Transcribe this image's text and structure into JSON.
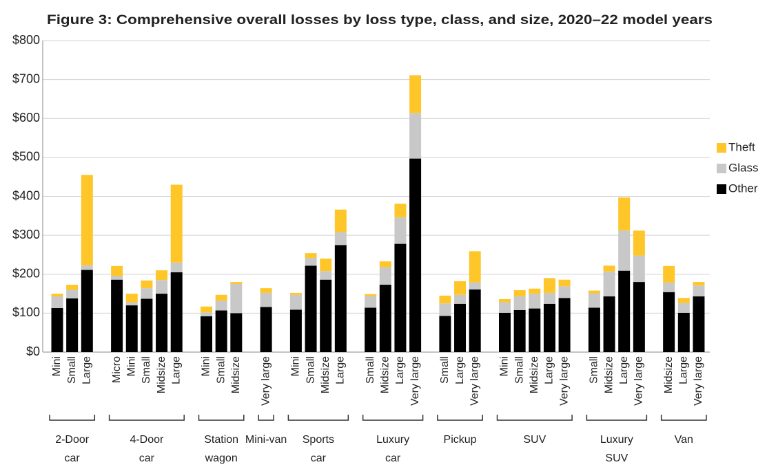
{
  "chart_data": {
    "type": "stacked_bar",
    "title": "Figure 3: Comprehensive overall losses by loss type, class, and size, 2020–22 model years",
    "groups": [
      {
        "name": "2-Door car",
        "categories": [
          "Mini",
          "Small",
          "Large"
        ]
      },
      {
        "name": "4-Door car",
        "categories": [
          "Micro",
          "Mini",
          "Small",
          "Midsize",
          "Large"
        ]
      },
      {
        "name": "Station wagon",
        "categories": [
          "Mini",
          "Small",
          "Midsize"
        ]
      },
      {
        "name": "Mini-van",
        "categories": [
          "Very large"
        ]
      },
      {
        "name": "Sports car",
        "categories": [
          "Mini",
          "Small",
          "Midsize",
          "Large"
        ]
      },
      {
        "name": "Luxury car",
        "categories": [
          "Small",
          "Midsize",
          "Large",
          "Very large"
        ]
      },
      {
        "name": "Pickup",
        "categories": [
          "Small",
          "Large",
          "Very large"
        ]
      },
      {
        "name": "SUV",
        "categories": [
          "Mini",
          "Small",
          "Midsize",
          "Large",
          "Very large"
        ]
      },
      {
        "name": "Luxury SUV",
        "categories": [
          "Small",
          "Midsize",
          "Large",
          "Very large"
        ]
      },
      {
        "name": "Van",
        "categories": [
          "Midsize",
          "Large",
          "Very large"
        ]
      }
    ],
    "series": [
      {
        "name": "Other",
        "color": "#000000",
        "values": [
          113,
          138,
          211,
          186,
          120,
          137,
          150,
          205,
          92,
          107,
          100,
          116,
          109,
          222,
          186,
          275,
          114,
          173,
          278,
          497,
          93,
          124,
          161,
          101,
          108,
          112,
          124,
          139,
          114,
          143,
          209,
          180,
          154,
          101,
          143
        ]
      },
      {
        "name": "Glass",
        "color": "#c8c8c8",
        "values": [
          30,
          22,
          12,
          10,
          8,
          27,
          35,
          25,
          10,
          25,
          75,
          36,
          38,
          20,
          22,
          33,
          30,
          45,
          68,
          117,
          32,
          23,
          18,
          27,
          35,
          38,
          28,
          30,
          37,
          64,
          103,
          68,
          25,
          25,
          28
        ]
      },
      {
        "name": "Theft",
        "color": "#ffc629",
        "values": [
          7,
          13,
          232,
          25,
          22,
          20,
          25,
          200,
          15,
          15,
          5,
          12,
          5,
          12,
          32,
          58,
          5,
          15,
          35,
          97,
          20,
          35,
          80,
          8,
          16,
          13,
          38,
          17,
          7,
          15,
          85,
          64,
          42,
          13,
          9
        ]
      }
    ],
    "ylim": [
      0,
      800
    ],
    "yticks": [
      {
        "value": 0,
        "label": "$0"
      },
      {
        "value": 100,
        "label": "$100"
      },
      {
        "value": 200,
        "label": "$200"
      },
      {
        "value": 300,
        "label": "$300"
      },
      {
        "value": 400,
        "label": "$400"
      },
      {
        "value": 500,
        "label": "$500"
      },
      {
        "value": 600,
        "label": "$600"
      },
      {
        "value": 700,
        "label": "$700"
      },
      {
        "value": 800,
        "label": "$800"
      }
    ],
    "grid": true,
    "legend": "right"
  }
}
